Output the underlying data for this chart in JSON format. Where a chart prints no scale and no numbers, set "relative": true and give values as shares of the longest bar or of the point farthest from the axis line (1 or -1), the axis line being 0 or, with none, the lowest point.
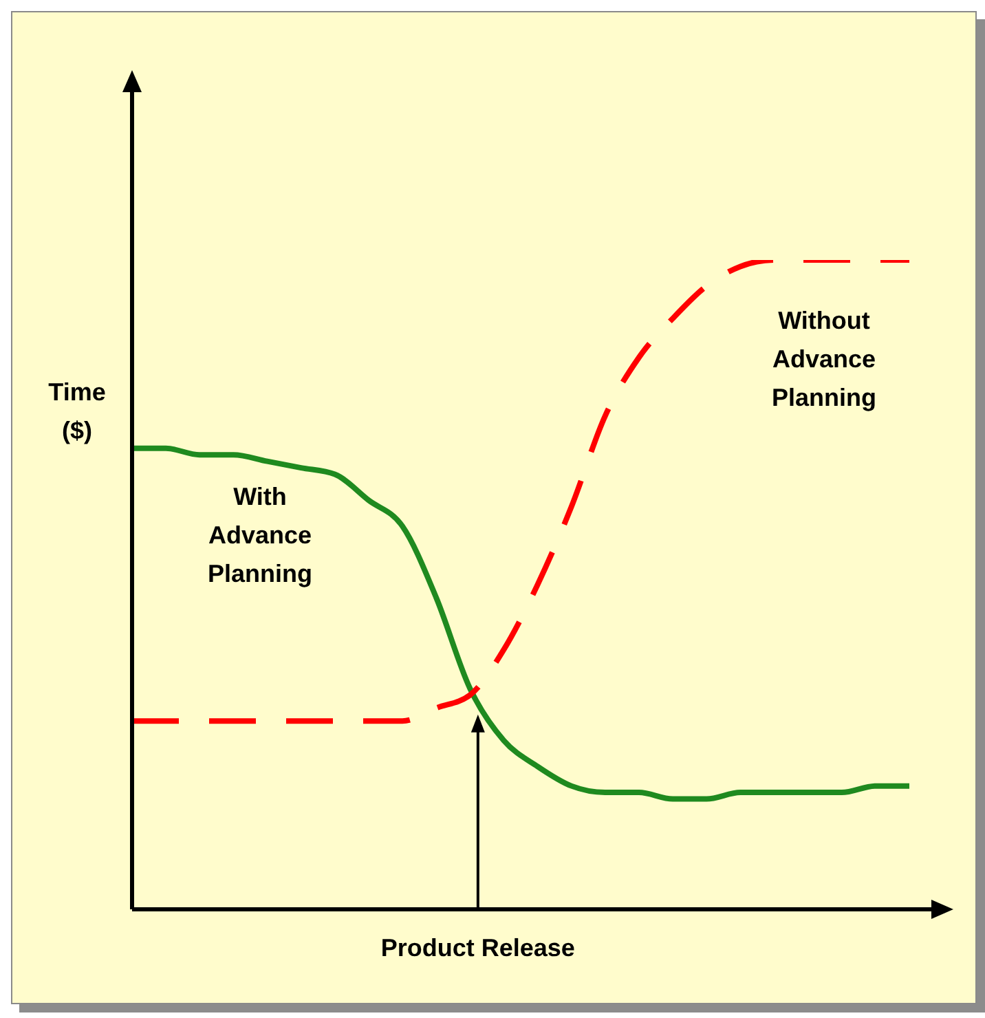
{
  "chart_data": {
    "type": "line",
    "relative": true,
    "ylabel": "Time ($)",
    "xlabel": "Product Release",
    "categories": [
      null,
      null,
      null,
      null,
      null,
      null,
      null,
      null,
      null,
      null,
      null,
      null,
      null,
      null,
      null,
      null,
      null,
      null,
      null,
      null,
      null,
      null,
      null,
      null
    ],
    "grid": false,
    "legend": false,
    "marker": "none",
    "series": [
      {
        "name": "With Advance Planning",
        "color": "#1f8a1f",
        "line_style": "solid",
        "values": [
          0.71,
          0.71,
          0.7,
          0.7,
          0.69,
          0.68,
          0.67,
          0.63,
          0.59,
          0.48,
          0.34,
          0.26,
          0.22,
          0.19,
          0.18,
          0.18,
          0.17,
          0.17,
          0.18,
          0.18,
          0.18,
          0.18,
          0.19,
          0.19
        ]
      },
      {
        "name": "Without Advance Planning",
        "color": "#ff0000",
        "line_style": "dashed",
        "values": [
          0.29,
          0.29,
          0.29,
          0.29,
          0.29,
          0.29,
          0.29,
          0.29,
          0.29,
          0.31,
          0.33,
          0.4,
          0.5,
          0.62,
          0.76,
          0.85,
          0.91,
          0.96,
          0.99,
          1.0,
          1.0,
          1.0,
          1.0,
          1.0
        ]
      }
    ]
  }
}
